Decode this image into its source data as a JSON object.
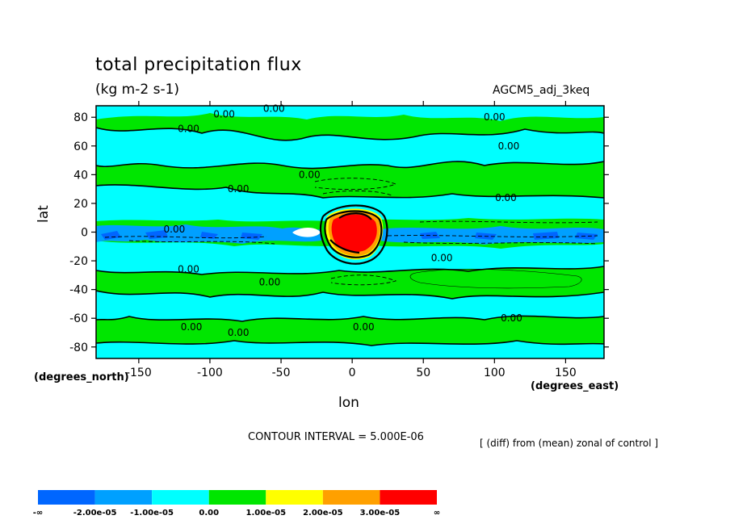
{
  "title": "total precipitation flux",
  "units": "(kg m-2 s-1)",
  "run_name": "AGCM5_adj_3keq",
  "contour_interval": "CONTOUR INTERVAL = 5.000E-06",
  "note": "[ (diff) from (mean) zonal of control ]",
  "colors": {
    "neg3": "#0066ff",
    "neg2": "#00a0ff",
    "neg1": "#00ffff",
    "pos1": "#00e600",
    "pos2": "#ffff00",
    "pos3": "#ffa000",
    "pos4": "#ff0000",
    "missing": "#ffffff"
  },
  "chart_data": {
    "type": "heatmap",
    "subtype": "filled contour map",
    "xlabel": "lon",
    "ylabel": "lat",
    "x_units_label": "(degrees_east)",
    "y_units_label": "(degrees_north)",
    "xlim": [
      -180,
      177
    ],
    "ylim": [
      -88,
      88
    ],
    "x_ticks": [
      -150,
      -100,
      -50,
      0,
      50,
      100,
      150
    ],
    "y_ticks": [
      80,
      60,
      40,
      20,
      0,
      -20,
      -40,
      -60,
      -80
    ],
    "contour_labels": [
      {
        "lon": -90,
        "lat": 82,
        "text": "0.00"
      },
      {
        "lon": -115,
        "lat": 72,
        "text": "0.00"
      },
      {
        "lon": -55,
        "lat": 86,
        "text": "0.00"
      },
      {
        "lon": 100,
        "lat": 80,
        "text": "0.00"
      },
      {
        "lon": 110,
        "lat": 60,
        "text": "0.00"
      },
      {
        "lon": -30,
        "lat": 40,
        "text": "0.00"
      },
      {
        "lon": -80,
        "lat": 30,
        "text": "0.00"
      },
      {
        "lon": 108,
        "lat": 24,
        "text": "0.00"
      },
      {
        "lon": -125,
        "lat": 2,
        "text": "0.00"
      },
      {
        "lon": 63,
        "lat": -18,
        "text": "0.00"
      },
      {
        "lon": -115,
        "lat": -26,
        "text": "0.00"
      },
      {
        "lon": -58,
        "lat": -35,
        "text": "0.00"
      },
      {
        "lon": 112,
        "lat": -60,
        "text": "0.00"
      },
      {
        "lon": -113,
        "lat": -66,
        "text": "0.00"
      },
      {
        "lon": -80,
        "lat": -70,
        "text": "0.00"
      },
      {
        "lon": 8,
        "lat": -66,
        "text": "0.00"
      }
    ],
    "colorbar": {
      "labels": [
        "-∞",
        "-2.00e-05",
        "-1.00e-05",
        "0.00",
        "1.00e-05",
        "2.00e-05",
        "3.00e-05",
        "∞"
      ],
      "bounds": [
        -2e-05,
        -1e-05,
        0.0,
        1e-05,
        2e-05,
        3e-05
      ]
    }
  }
}
